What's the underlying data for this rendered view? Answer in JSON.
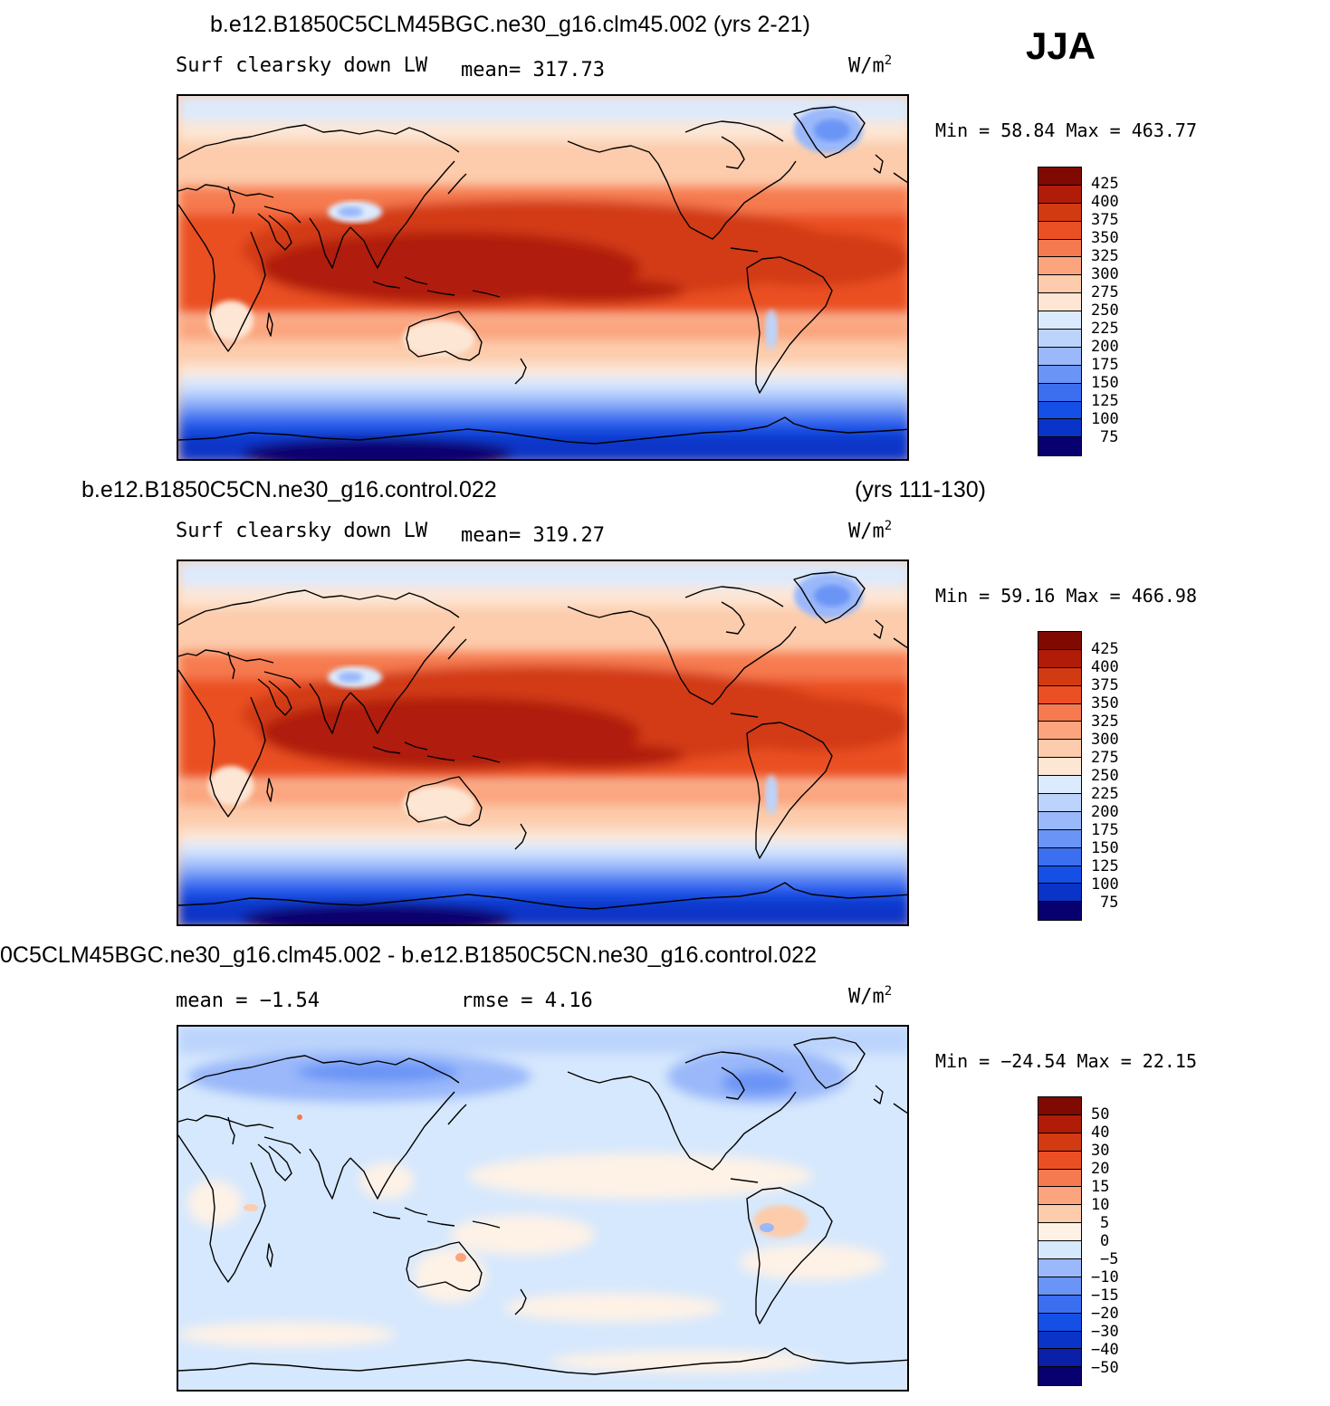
{
  "season": "JJA",
  "colors": {
    "abs_scale": [
      "#08006e",
      "#0a20a8",
      "#0a34c8",
      "#1450e6",
      "#3c6ef0",
      "#6a94f6",
      "#9ab8fa",
      "#bcd4fc",
      "#dceafd",
      "#fde6d4",
      "#fcccac",
      "#fba47e",
      "#f67a50",
      "#ea5024",
      "#d23a12",
      "#b01c08",
      "#800a02"
    ],
    "diff_scale": [
      "#08006e",
      "#0a20a8",
      "#0a34c8",
      "#1450e6",
      "#3c6ef0",
      "#6a94f6",
      "#9ab8fa",
      "#d6e8fd",
      "#fde6d4",
      "#fcccac",
      "#fba47e",
      "#f67a50",
      "#ea5024",
      "#d23a12",
      "#b01c08",
      "#800a02"
    ]
  },
  "panels": [
    {
      "title": "b.e12.B1850C5CLM45BGC.ne30_g16.clm45.002 (yrs 2-21)",
      "variable": "Surf clearsky down LW",
      "mean_label": "mean= 317.73",
      "units": "W/m",
      "units_exp": "2",
      "minmax": "Min =  58.84 Max = 463.77",
      "colorbar_labels": [
        "425",
        "400",
        "375",
        "350",
        "325",
        "300",
        "275",
        "250",
        "225",
        "200",
        "175",
        "150",
        "125",
        "100",
        "75"
      ]
    },
    {
      "title_left": "b.e12.B1850C5CN.ne30_g16.control.022",
      "title_right": "(yrs 111-130)",
      "variable": "Surf clearsky down LW",
      "mean_label": "mean= 319.27",
      "units": "W/m",
      "units_exp": "2",
      "minmax": "Min =  59.16 Max = 466.98",
      "colorbar_labels": [
        "425",
        "400",
        "375",
        "350",
        "325",
        "300",
        "275",
        "250",
        "225",
        "200",
        "175",
        "150",
        "125",
        "100",
        "75"
      ]
    },
    {
      "title": "0C5CLM45BGC.ne30_g16.clm45.002 - b.e12.B1850C5CN.ne30_g16.control.022",
      "mean_label": "mean =  −1.54",
      "rmse_label": "rmse =   4.16",
      "units": "W/m",
      "units_exp": "2",
      "minmax": "Min = −24.54 Max =  22.15",
      "colorbar_labels": [
        "50",
        "40",
        "30",
        "20",
        "15",
        "10",
        "5",
        "0",
        "−5",
        "−10",
        "−15",
        "−20",
        "−30",
        "−40",
        "−50"
      ]
    }
  ]
}
